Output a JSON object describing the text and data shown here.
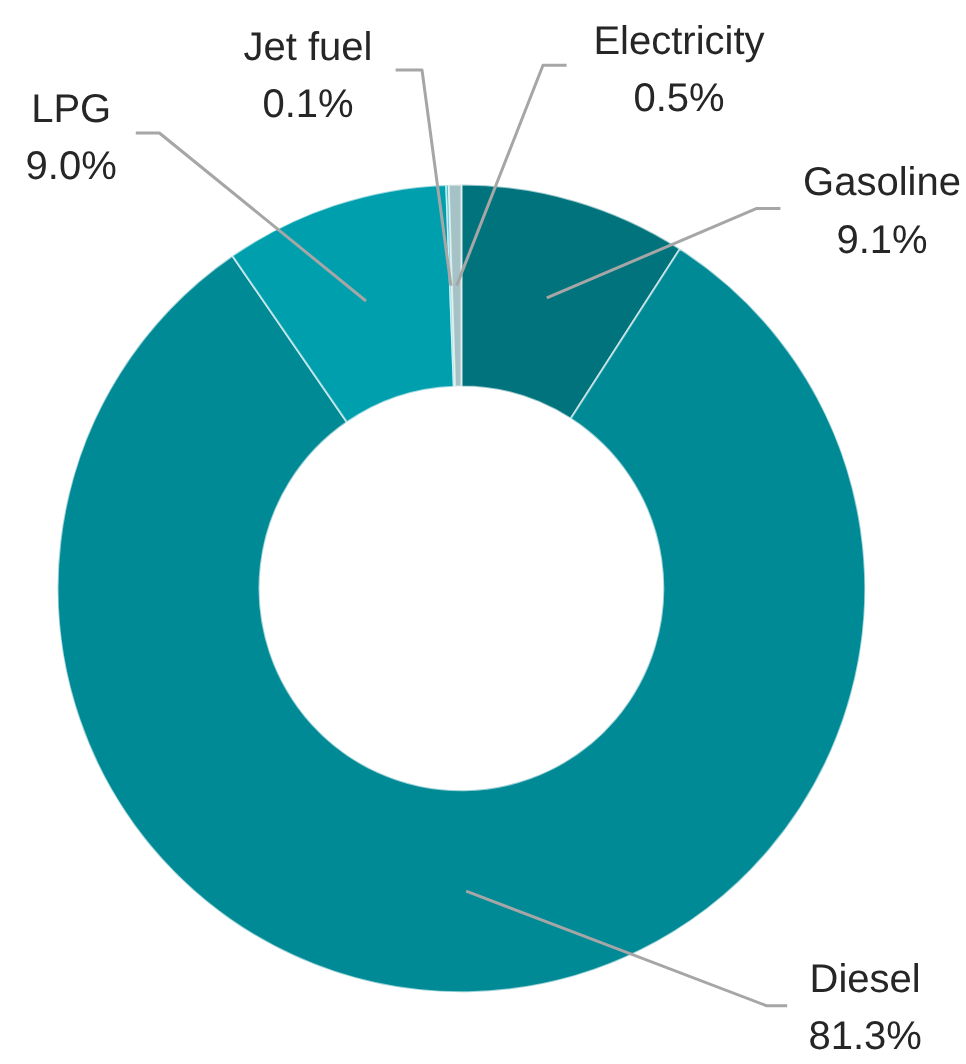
{
  "chart_data": {
    "type": "donut",
    "categories": [
      "Gasoline",
      "Diesel",
      "LPG",
      "Jet fuel",
      "Electricity"
    ],
    "values": [
      9.1,
      81.3,
      9.0,
      0.1,
      0.5
    ],
    "value_labels": [
      "9.1%",
      "81.3%",
      "9.0%",
      "0.1%",
      "0.5%"
    ],
    "colors": [
      "#00737d",
      "#008a96",
      "#009fae",
      "#00a8b8",
      "#a5c3c6"
    ]
  }
}
